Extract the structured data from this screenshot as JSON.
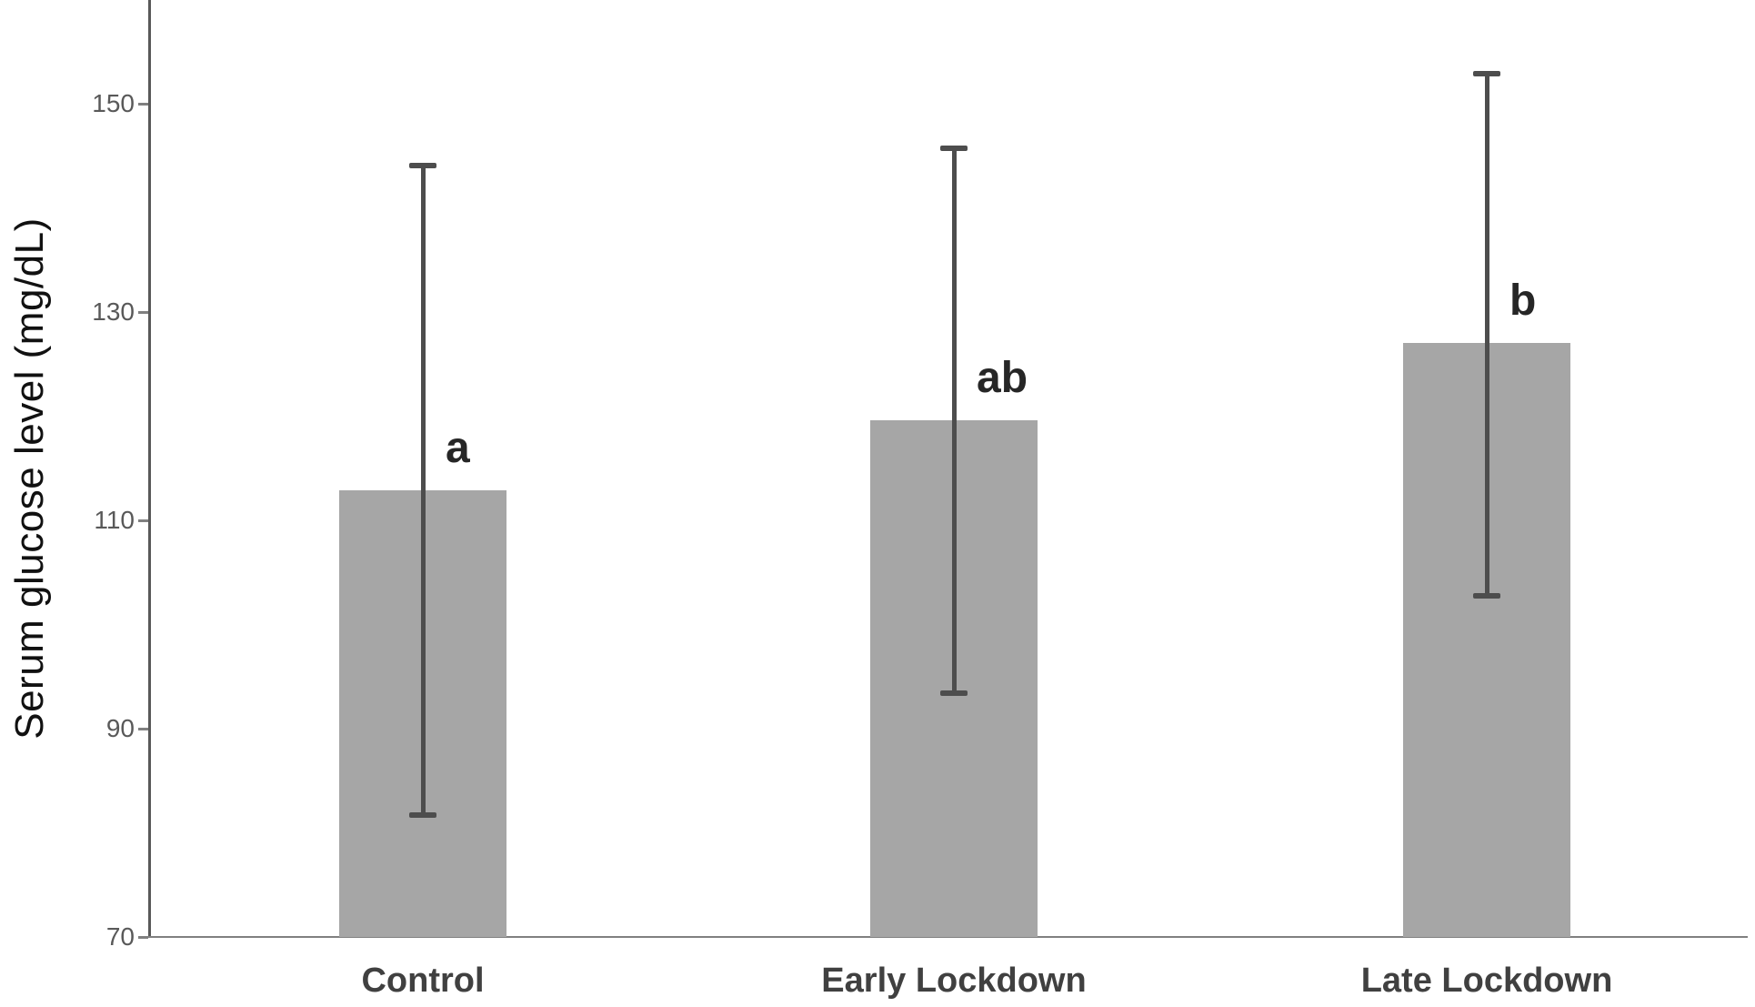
{
  "figure": {
    "ylabel": "Serum glucose level (mg/dL)",
    "background": "#ffffff"
  },
  "chart_data": {
    "type": "bar",
    "title": "",
    "categories": [
      "Control",
      "Early Lockdown",
      "Late Lockdown"
    ],
    "values": [
      112.9,
      119.6,
      127.1
    ],
    "error_bars": {
      "upper": [
        144.1,
        145.8,
        152.9
      ],
      "lower": [
        81.7,
        93.4,
        102.8
      ]
    },
    "sig_letters": [
      "a",
      "ab",
      "b"
    ],
    "xlabel": "",
    "ylabel": "Serum glucose level (mg/dL)",
    "yticks": [
      150,
      130,
      110,
      90,
      70
    ],
    "ylim": [
      70,
      160
    ],
    "grid": false,
    "legend": null,
    "colors": {
      "bar_fill": "#a6a6a6",
      "error_bar": "#4d4d4d",
      "x_axis_line": "#808080",
      "y_axis_line": "#595959",
      "tick_label": "#595959",
      "category_label": "#404040",
      "sig_letter": "#262626"
    }
  }
}
